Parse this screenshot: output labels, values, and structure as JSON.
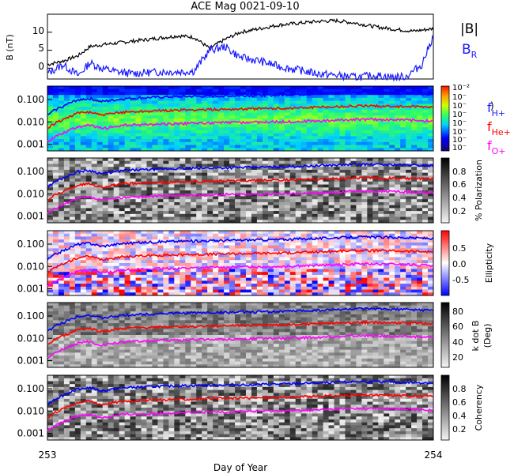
{
  "title": "ACE Mag 0021-09-10",
  "xlabel": "Day of Year",
  "x_ticks": [
    "253",
    "254"
  ],
  "colors": {
    "total_field": "#000000",
    "radial": "#1a1aff",
    "h_line": "#0000ff",
    "he_line": "#ff0000",
    "o_line": "#ff00ff"
  },
  "legend": {
    "b_total": "|B|",
    "b_radial_main": "B",
    "b_radial_sub": "R",
    "f_h_main": "f",
    "f_h_sub": "H+",
    "f_he_main": "f",
    "f_he_sub": "He+",
    "f_o_main": "f",
    "f_o_sub": "O+"
  },
  "panels": [
    {
      "id": "bfield",
      "ylabel": "B (nT)",
      "y_ticks": [
        "0",
        "5",
        "10"
      ]
    },
    {
      "id": "power",
      "colorbar_label": ")",
      "colorbar_ticks": [
        "10⁻²",
        "10⁻",
        "10⁻",
        "10⁻",
        "10⁻",
        "10⁻",
        "10⁻",
        "10⁻"
      ]
    },
    {
      "id": "polarization",
      "colorbar_label": "% Polarization",
      "colorbar_ticks": [
        "0.8",
        "0.6",
        "0.4",
        "0.2"
      ]
    },
    {
      "id": "ellipticity",
      "colorbar_label": "Ellipticity",
      "colorbar_ticks": [
        "0.5",
        "0.0",
        "-0.5"
      ]
    },
    {
      "id": "kdotb",
      "colorbar_label_1": "k dot B",
      "colorbar_label_2": "(Deg)",
      "colorbar_ticks": [
        "80",
        "60",
        "40",
        "20"
      ]
    },
    {
      "id": "coherency",
      "colorbar_label": "Coherency",
      "colorbar_ticks": [
        "0.8",
        "0.6",
        "0.4",
        "0.2"
      ]
    }
  ],
  "freq_ticks": [
    "0.100",
    "0.010",
    "0.001"
  ],
  "chart_data": [
    {
      "type": "line",
      "title": "ACE Mag 0021-09-10",
      "xlabel": "Day of Year",
      "ylabel": "B (nT)",
      "xlim": [
        253,
        254
      ],
      "ylim": [
        -3,
        15
      ],
      "series": [
        {
          "name": "|B|",
          "x": [
            253.0,
            253.04,
            253.08,
            253.11,
            253.14,
            253.18,
            253.22,
            253.26,
            253.3,
            253.34,
            253.38,
            253.42,
            253.46,
            253.5,
            253.55,
            253.6,
            253.65,
            253.7,
            253.75,
            253.8,
            253.85,
            253.9,
            253.95,
            254.0
          ],
          "values": [
            1.0,
            2.0,
            3.5,
            6.0,
            6.5,
            7.0,
            7.5,
            8.0,
            8.5,
            9.0,
            8.6,
            5.5,
            8.0,
            10.0,
            11.0,
            12.0,
            12.5,
            13.0,
            13.2,
            12.5,
            11.5,
            10.8,
            10.3,
            11.0
          ]
        },
        {
          "name": "B_R",
          "x": [
            253.0,
            253.04,
            253.08,
            253.11,
            253.14,
            253.18,
            253.22,
            253.26,
            253.3,
            253.34,
            253.38,
            253.42,
            253.46,
            253.5,
            253.55,
            253.6,
            253.65,
            253.7,
            253.75,
            253.8,
            253.85,
            253.9,
            253.93,
            253.97,
            254.0
          ],
          "values": [
            -1.5,
            1.0,
            -2.0,
            1.5,
            0.0,
            -1.0,
            -1.5,
            -1.2,
            -1.0,
            -1.0,
            -0.8,
            5.0,
            6.0,
            3.0,
            2.0,
            0.5,
            -0.5,
            -1.5,
            -2.0,
            -2.5,
            -2.0,
            -2.5,
            -2.3,
            1.0,
            9.0
          ]
        }
      ]
    },
    {
      "type": "line",
      "title": "",
      "xlabel": "Day of Year",
      "ylabel": "",
      "yscale": "log",
      "xlim": [
        253,
        254
      ],
      "ylim": [
        0.0005,
        0.4
      ],
      "series": [
        {
          "name": "fH+",
          "x": [
            253.0,
            253.02,
            253.05,
            253.08,
            253.11,
            253.14,
            253.2,
            253.3,
            253.4,
            253.5,
            253.6,
            253.7,
            253.8,
            253.9,
            254.0
          ],
          "values": [
            0.02,
            0.035,
            0.06,
            0.1,
            0.11,
            0.08,
            0.11,
            0.13,
            0.14,
            0.15,
            0.16,
            0.18,
            0.21,
            0.2,
            0.18
          ]
        },
        {
          "name": "fHe+",
          "x": [
            253.0,
            253.02,
            253.05,
            253.08,
            253.11,
            253.14,
            253.2,
            253.3,
            253.4,
            253.5,
            253.6,
            253.7,
            253.8,
            253.9,
            254.0
          ],
          "values": [
            0.005,
            0.009,
            0.015,
            0.025,
            0.028,
            0.02,
            0.028,
            0.032,
            0.035,
            0.038,
            0.04,
            0.045,
            0.052,
            0.05,
            0.045
          ]
        },
        {
          "name": "fO+",
          "x": [
            253.0,
            253.02,
            253.05,
            253.08,
            253.11,
            253.14,
            253.2,
            253.3,
            253.4,
            253.5,
            253.6,
            253.7,
            253.8,
            253.9,
            254.0
          ],
          "values": [
            0.0013,
            0.0022,
            0.0038,
            0.0062,
            0.007,
            0.005,
            0.007,
            0.008,
            0.0088,
            0.0095,
            0.01,
            0.011,
            0.013,
            0.0125,
            0.011
          ]
        }
      ]
    }
  ]
}
